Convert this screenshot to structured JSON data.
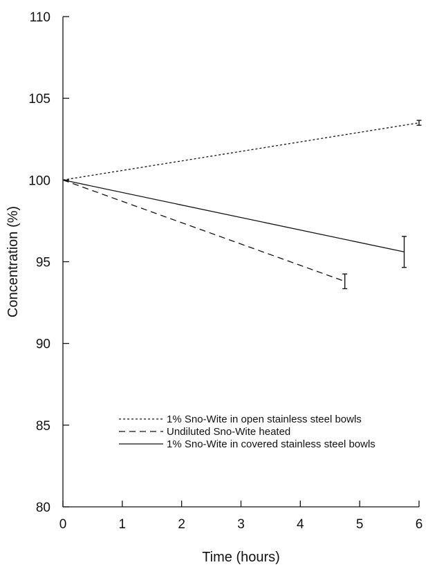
{
  "chart_data": {
    "type": "line",
    "xlabel": "Time (hours)",
    "ylabel": "Concentration (%)",
    "xlim": [
      0,
      6
    ],
    "ylim": [
      80,
      110
    ],
    "xticks": [
      "0",
      "1",
      "2",
      "3",
      "4",
      "5",
      "6"
    ],
    "yticks": [
      "80",
      "85",
      "90",
      "95",
      "100",
      "105",
      "110"
    ],
    "grid": false,
    "legend_position": "bottom-right",
    "series": [
      {
        "name": "1% Sno-Wite in open stainless steel bowls",
        "style": "dotted",
        "x": [
          0,
          6
        ],
        "y": [
          100,
          103.5
        ],
        "error": [
          null,
          0.15
        ]
      },
      {
        "name": "Undiluted Sno-Wite heated",
        "style": "dashed",
        "x": [
          0,
          4.75
        ],
        "y": [
          100,
          93.8
        ],
        "error": [
          null,
          0.45
        ]
      },
      {
        "name": "1% Sno-Wite in covered stainless steel bowls",
        "style": "solid",
        "x": [
          0,
          5.75
        ],
        "y": [
          100,
          95.6
        ],
        "error": [
          null,
          0.95
        ]
      }
    ]
  }
}
